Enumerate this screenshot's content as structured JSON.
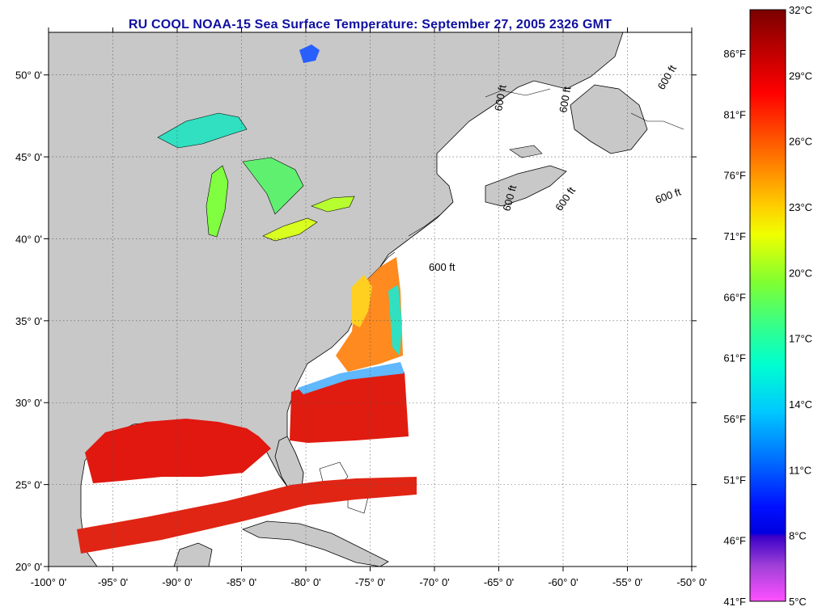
{
  "title": "RU COOL  NOAA-15  Sea Surface Temperature:  September 27, 2005 2326 GMT",
  "map": {
    "lon_range": [
      -100,
      -50
    ],
    "lat_range": [
      20,
      52.6
    ],
    "lon_ticks": [
      "-100° 0'",
      "-95° 0'",
      "-90° 0'",
      "-85° 0'",
      "-80° 0'",
      "-75° 0'",
      "-70° 0'",
      "-65° 0'",
      "-60° 0'",
      "-55° 0'",
      "-50° 0'"
    ],
    "lat_ticks": [
      "20° 0'",
      "25° 0'",
      "30° 0'",
      "35° 0'",
      "40° 0'",
      "45° 0'",
      "50° 0'"
    ],
    "bathymetry_labels": [
      "600 ft",
      "600 ft",
      "600 ft",
      "600 ft",
      "600 ft",
      "600 ft",
      "600 ft"
    ],
    "land_color": "#c8c8c8",
    "no_data_color": "#ffffff"
  },
  "colorbar": {
    "fahrenheit_labels": [
      "86°F",
      "81°F",
      "76°F",
      "71°F",
      "66°F",
      "61°F",
      "56°F",
      "51°F",
      "46°F",
      "41°F"
    ],
    "celsius_labels": [
      "32°C",
      "29°C",
      "26°C",
      "23°C",
      "20°C",
      "17°C",
      "14°C",
      "11°C",
      "8°C",
      "5°C"
    ],
    "colors_top_to_bottom": [
      "#7a0000",
      "#c00000",
      "#ff0000",
      "#ff5a00",
      "#ff9900",
      "#ffd200",
      "#f0ff00",
      "#a0ff20",
      "#40ff70",
      "#00ffc0",
      "#00d8ff",
      "#0090ff",
      "#0040ff",
      "#0000ff",
      "#3a00c8",
      "#a040d0",
      "#ff40e0",
      "#ff60ff"
    ]
  }
}
